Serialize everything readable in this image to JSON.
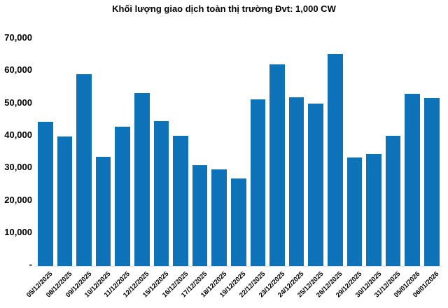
{
  "chart_data": {
    "type": "bar",
    "title": "Khối lượng giao dịch toàn thị trường Đvt: 1,000 CW",
    "categories": [
      "05/12/2025",
      "08/12/2025",
      "09/12/2025",
      "10/12/2025",
      "11/12/2025",
      "12/12/2025",
      "15/12/2025",
      "16/12/2025",
      "17/12/2025",
      "18/12/2025",
      "19/12/2025",
      "22/12/2025",
      "23/12/2025",
      "24/12/2025",
      "25/12/2025",
      "26/12/2025",
      "29/12/2025",
      "30/12/2025",
      "31/12/2025",
      "05/01/2026",
      "06/01/2026"
    ],
    "values": [
      44300,
      39800,
      58900,
      33400,
      42700,
      53000,
      44400,
      39900,
      31000,
      29700,
      26900,
      51200,
      61900,
      51800,
      49800,
      65100,
      33200,
      34300,
      39900,
      52900,
      51600
    ],
    "xlabel": "",
    "ylabel": "",
    "ylim": [
      0,
      70000
    ],
    "y_tick_step": 10000,
    "y_tick_labels": [
      "70,000",
      "60,000",
      "50,000",
      "40,000",
      "30,000",
      "20,000",
      "10,000",
      "-"
    ],
    "grid": false,
    "legend": "none",
    "bar_color": "#0E72B9",
    "axis_line_color": "#D9E1F2",
    "text_color": "#000000",
    "background_color": "#FFFFFF"
  }
}
